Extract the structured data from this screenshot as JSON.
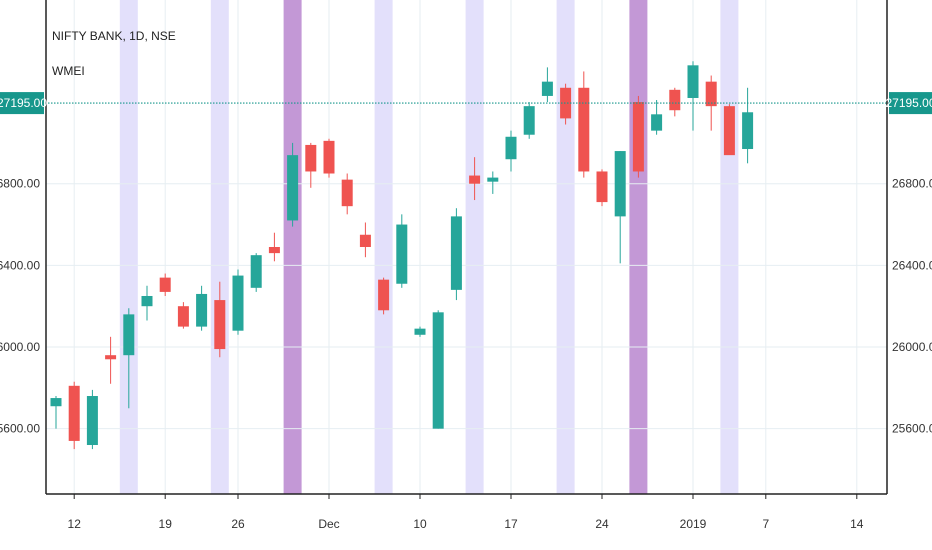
{
  "chart_data": {
    "type": "candlestick",
    "symbol_label": "NIFTY BANK, 1D, NSE",
    "indicator_label": "WMEI",
    "price_line_value": 27195,
    "price_line_label": "27195.00",
    "ylim": [
      25280,
      27700
    ],
    "y_ticks": [
      {
        "value": 25600,
        "label": "25600.00"
      },
      {
        "value": 26000,
        "label": "26000.00"
      },
      {
        "value": 26400,
        "label": "26400.00"
      },
      {
        "value": 26800,
        "label": "26800.00"
      }
    ],
    "x_ticks": [
      {
        "index": 1,
        "label": "12"
      },
      {
        "index": 6,
        "label": "19"
      },
      {
        "index": 10,
        "label": "26"
      },
      {
        "index": 15,
        "label": "Dec"
      },
      {
        "index": 20,
        "label": "10"
      },
      {
        "index": 25,
        "label": "17"
      },
      {
        "index": 30,
        "label": "24"
      },
      {
        "index": 35,
        "label": "2019"
      },
      {
        "index": 39,
        "label": "7"
      },
      {
        "index": 44,
        "label": "14"
      }
    ],
    "bars": [
      {
        "o": 25710,
        "h": 25760,
        "l": 25600,
        "c": 25750
      },
      {
        "o": 25810,
        "h": 25830,
        "l": 25500,
        "c": 25540
      },
      {
        "o": 25520,
        "h": 25790,
        "l": 25500,
        "c": 25760
      },
      {
        "o": 25960,
        "h": 26050,
        "l": 25820,
        "c": 25940
      },
      {
        "o": 25960,
        "h": 26190,
        "l": 25700,
        "c": 26160
      },
      {
        "o": 26200,
        "h": 26300,
        "l": 26130,
        "c": 26250
      },
      {
        "o": 26340,
        "h": 26360,
        "l": 26250,
        "c": 26270
      },
      {
        "o": 26200,
        "h": 26220,
        "l": 26090,
        "c": 26100
      },
      {
        "o": 26100,
        "h": 26300,
        "l": 26080,
        "c": 26260
      },
      {
        "o": 26230,
        "h": 26320,
        "l": 25950,
        "c": 25990
      },
      {
        "o": 26080,
        "h": 26380,
        "l": 26060,
        "c": 26350
      },
      {
        "o": 26290,
        "h": 26460,
        "l": 26270,
        "c": 26450
      },
      {
        "o": 26490,
        "h": 26560,
        "l": 26420,
        "c": 26460
      },
      {
        "o": 26620,
        "h": 27000,
        "l": 26590,
        "c": 26940
      },
      {
        "o": 26990,
        "h": 27000,
        "l": 26780,
        "c": 26860
      },
      {
        "o": 27010,
        "h": 27020,
        "l": 26830,
        "c": 26850
      },
      {
        "o": 26820,
        "h": 26850,
        "l": 26650,
        "c": 26690
      },
      {
        "o": 26550,
        "h": 26610,
        "l": 26440,
        "c": 26490
      },
      {
        "o": 26330,
        "h": 26340,
        "l": 26160,
        "c": 26180
      },
      {
        "o": 26310,
        "h": 26650,
        "l": 26290,
        "c": 26600
      },
      {
        "o": 26060,
        "h": 26100,
        "l": 26050,
        "c": 26090
      },
      {
        "o": 25600,
        "h": 26180,
        "l": 25600,
        "c": 26170
      },
      {
        "o": 26280,
        "h": 26680,
        "l": 26230,
        "c": 26640
      },
      {
        "o": 26840,
        "h": 26930,
        "l": 26720,
        "c": 26800
      },
      {
        "o": 26810,
        "h": 26860,
        "l": 26750,
        "c": 26830
      },
      {
        "o": 26920,
        "h": 27060,
        "l": 26860,
        "c": 27030
      },
      {
        "o": 27040,
        "h": 27200,
        "l": 27020,
        "c": 27180
      },
      {
        "o": 27230,
        "h": 27370,
        "l": 27200,
        "c": 27300
      },
      {
        "o": 27270,
        "h": 27290,
        "l": 27090,
        "c": 27120
      },
      {
        "o": 27270,
        "h": 27350,
        "l": 26830,
        "c": 26860
      },
      {
        "o": 26860,
        "h": 26870,
        "l": 26690,
        "c": 26710
      },
      {
        "o": 26640,
        "h": 26960,
        "l": 26410,
        "c": 26960
      },
      {
        "o": 27200,
        "h": 27230,
        "l": 26830,
        "c": 26860
      },
      {
        "o": 27060,
        "h": 27210,
        "l": 27040,
        "c": 27140
      },
      {
        "o": 27260,
        "h": 27270,
        "l": 27130,
        "c": 27160
      },
      {
        "o": 27220,
        "h": 27400,
        "l": 27060,
        "c": 27380
      },
      {
        "o": 27300,
        "h": 27330,
        "l": 27060,
        "c": 27180
      },
      {
        "o": 27180,
        "h": 27190,
        "l": 26950,
        "c": 26940
      },
      {
        "o": 26970,
        "h": 27270,
        "l": 26900,
        "c": 27150
      }
    ],
    "highlight_columns": [
      {
        "index": 4,
        "strength": "light"
      },
      {
        "index": 9,
        "strength": "light"
      },
      {
        "index": 13,
        "strength": "strong"
      },
      {
        "index": 18,
        "strength": "light"
      },
      {
        "index": 23,
        "strength": "light"
      },
      {
        "index": 28,
        "strength": "light"
      },
      {
        "index": 32,
        "strength": "strong"
      },
      {
        "index": 37,
        "strength": "light"
      }
    ],
    "colors": {
      "up": "#26a69a",
      "down": "#ef5350",
      "highlight_light": "#e3e0fb",
      "highlight_strong": "#c398d6",
      "price_line": "#17978c",
      "badge": "#17978c",
      "grid": "#e6eef2",
      "axis": "#222222"
    },
    "grid": true
  }
}
